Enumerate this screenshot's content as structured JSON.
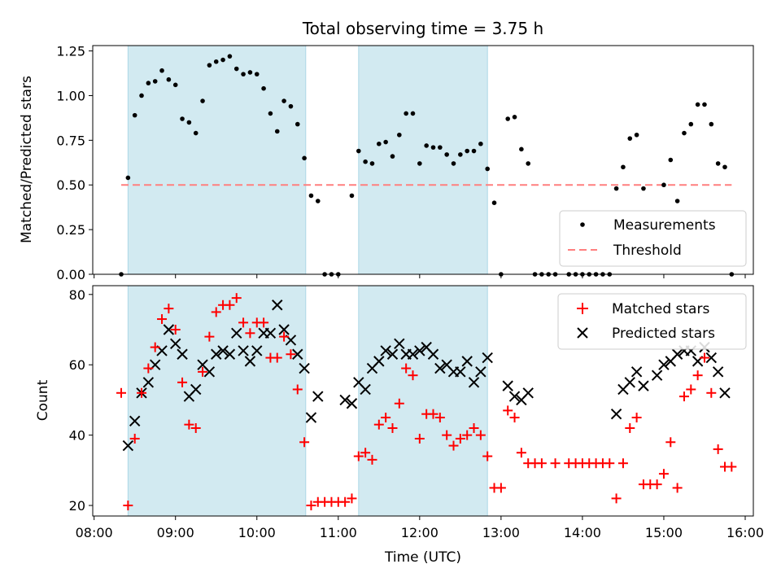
{
  "chart_data": {
    "title": "Total observing time = 3.75 h",
    "colors": {
      "band": "#add8e6",
      "measurement": "#000000",
      "threshold": "#ff7f7f",
      "matched": "#ff0000",
      "predicted": "#000000"
    },
    "bands": [
      [
        "08:25",
        "10:36"
      ],
      [
        "11:15",
        "12:50"
      ]
    ],
    "x_ticks": [
      "08:00",
      "09:00",
      "10:00",
      "11:00",
      "12:00",
      "13:00",
      "14:00",
      "15:00",
      "16:00"
    ],
    "xlim": [
      "07:59",
      "16:06"
    ],
    "xlabel": "Time (UTC)",
    "top": {
      "type": "scatter",
      "ylabel": "Matched/Predicted stars",
      "ylim": [
        0,
        1.28
      ],
      "y_ticks": [
        "0.00",
        "0.25",
        "0.50",
        "0.75",
        "1.00",
        "1.25"
      ],
      "legend": [
        "Measurements",
        "Threshold"
      ],
      "legend_position": "lower-right",
      "threshold": {
        "value": 0.5,
        "x": [
          "08:20",
          "15:50"
        ]
      },
      "measurements": [
        [
          "08:20",
          0.0
        ],
        [
          "08:25",
          0.54
        ],
        [
          "08:30",
          0.89
        ],
        [
          "08:35",
          1.0
        ],
        [
          "08:40",
          1.07
        ],
        [
          "08:45",
          1.08
        ],
        [
          "08:50",
          1.14
        ],
        [
          "08:55",
          1.09
        ],
        [
          "09:00",
          1.06
        ],
        [
          "09:05",
          0.87
        ],
        [
          "09:10",
          0.85
        ],
        [
          "09:15",
          0.79
        ],
        [
          "09:20",
          0.97
        ],
        [
          "09:25",
          1.17
        ],
        [
          "09:30",
          1.19
        ],
        [
          "09:35",
          1.2
        ],
        [
          "09:40",
          1.22
        ],
        [
          "09:45",
          1.15
        ],
        [
          "09:50",
          1.12
        ],
        [
          "09:55",
          1.13
        ],
        [
          "10:00",
          1.12
        ],
        [
          "10:05",
          1.04
        ],
        [
          "10:10",
          0.9
        ],
        [
          "10:15",
          0.8
        ],
        [
          "10:20",
          0.97
        ],
        [
          "10:25",
          0.94
        ],
        [
          "10:30",
          0.84
        ],
        [
          "10:35",
          0.65
        ],
        [
          "10:40",
          0.44
        ],
        [
          "10:45",
          0.41
        ],
        [
          "10:50",
          0.0
        ],
        [
          "10:55",
          0.0
        ],
        [
          "11:00",
          0.0
        ],
        [
          "11:10",
          0.44
        ],
        [
          "11:15",
          0.69
        ],
        [
          "11:20",
          0.63
        ],
        [
          "11:25",
          0.62
        ],
        [
          "11:30",
          0.73
        ],
        [
          "11:35",
          0.74
        ],
        [
          "11:40",
          0.66
        ],
        [
          "11:45",
          0.78
        ],
        [
          "11:50",
          0.9
        ],
        [
          "11:55",
          0.9
        ],
        [
          "12:00",
          0.62
        ],
        [
          "12:05",
          0.72
        ],
        [
          "12:10",
          0.71
        ],
        [
          "12:15",
          0.71
        ],
        [
          "12:20",
          0.67
        ],
        [
          "12:25",
          0.62
        ],
        [
          "12:30",
          0.67
        ],
        [
          "12:35",
          0.69
        ],
        [
          "12:40",
          0.69
        ],
        [
          "12:45",
          0.73
        ],
        [
          "12:50",
          0.59
        ],
        [
          "12:55",
          0.4
        ],
        [
          "13:00",
          0.0
        ],
        [
          "13:05",
          0.87
        ],
        [
          "13:10",
          0.88
        ],
        [
          "13:15",
          0.7
        ],
        [
          "13:20",
          0.62
        ],
        [
          "13:25",
          0.0
        ],
        [
          "13:30",
          0.0
        ],
        [
          "13:35",
          0.0
        ],
        [
          "13:40",
          0.0
        ],
        [
          "13:50",
          0.0
        ],
        [
          "13:55",
          0.0
        ],
        [
          "14:00",
          0.0
        ],
        [
          "14:05",
          0.0
        ],
        [
          "14:10",
          0.0
        ],
        [
          "14:15",
          0.0
        ],
        [
          "14:20",
          0.0
        ],
        [
          "14:25",
          0.48
        ],
        [
          "14:30",
          0.6
        ],
        [
          "14:35",
          0.76
        ],
        [
          "14:40",
          0.78
        ],
        [
          "14:45",
          0.48
        ],
        [
          "15:00",
          0.5
        ],
        [
          "15:05",
          0.64
        ],
        [
          "15:10",
          0.41
        ],
        [
          "15:15",
          0.79
        ],
        [
          "15:20",
          0.84
        ],
        [
          "15:25",
          0.95
        ],
        [
          "15:30",
          0.95
        ],
        [
          "15:35",
          0.84
        ],
        [
          "15:40",
          0.62
        ],
        [
          "15:45",
          0.6
        ],
        [
          "15:50",
          0.0
        ]
      ]
    },
    "bottom": {
      "type": "scatter",
      "ylabel": "Count",
      "ylim": [
        17,
        82.5
      ],
      "y_ticks": [
        "20",
        "40",
        "60",
        "80"
      ],
      "legend": [
        "Matched stars",
        "Predicted stars"
      ],
      "legend_position": "upper-right",
      "matched": [
        [
          "08:20",
          52
        ],
        [
          "08:25",
          20
        ],
        [
          "08:30",
          39
        ],
        [
          "08:35",
          52
        ],
        [
          "08:40",
          59
        ],
        [
          "08:45",
          65
        ],
        [
          "08:50",
          73
        ],
        [
          "08:55",
          76
        ],
        [
          "09:00",
          70
        ],
        [
          "09:05",
          55
        ],
        [
          "09:10",
          43
        ],
        [
          "09:15",
          42
        ],
        [
          "09:20",
          58
        ],
        [
          "09:25",
          68
        ],
        [
          "09:30",
          75
        ],
        [
          "09:35",
          77
        ],
        [
          "09:40",
          77
        ],
        [
          "09:45",
          79
        ],
        [
          "09:50",
          72
        ],
        [
          "09:55",
          69
        ],
        [
          "10:00",
          72
        ],
        [
          "10:05",
          72
        ],
        [
          "10:10",
          62
        ],
        [
          "10:15",
          62
        ],
        [
          "10:20",
          68
        ],
        [
          "10:25",
          63
        ],
        [
          "10:30",
          53
        ],
        [
          "10:35",
          38
        ],
        [
          "10:40",
          20
        ],
        [
          "10:45",
          21
        ],
        [
          "10:50",
          21
        ],
        [
          "10:55",
          21
        ],
        [
          "11:00",
          21
        ],
        [
          "11:05",
          21
        ],
        [
          "11:10",
          22
        ],
        [
          "11:15",
          34
        ],
        [
          "11:20",
          35
        ],
        [
          "11:25",
          33
        ],
        [
          "11:30",
          43
        ],
        [
          "11:35",
          45
        ],
        [
          "11:40",
          42
        ],
        [
          "11:45",
          49
        ],
        [
          "11:50",
          59
        ],
        [
          "11:55",
          57
        ],
        [
          "12:00",
          39
        ],
        [
          "12:05",
          46
        ],
        [
          "12:10",
          46
        ],
        [
          "12:15",
          45
        ],
        [
          "12:20",
          40
        ],
        [
          "12:25",
          37
        ],
        [
          "12:30",
          39
        ],
        [
          "12:35",
          40
        ],
        [
          "12:40",
          42
        ],
        [
          "12:45",
          40
        ],
        [
          "12:50",
          34
        ],
        [
          "12:55",
          25
        ],
        [
          "13:00",
          25
        ],
        [
          "13:05",
          47
        ],
        [
          "13:10",
          45
        ],
        [
          "13:15",
          35
        ],
        [
          "13:20",
          32
        ],
        [
          "13:25",
          32
        ],
        [
          "13:30",
          32
        ],
        [
          "13:40",
          32
        ],
        [
          "13:50",
          32
        ],
        [
          "13:55",
          32
        ],
        [
          "14:00",
          32
        ],
        [
          "14:05",
          32
        ],
        [
          "14:10",
          32
        ],
        [
          "14:15",
          32
        ],
        [
          "14:20",
          32
        ],
        [
          "14:25",
          22
        ],
        [
          "14:30",
          32
        ],
        [
          "14:35",
          42
        ],
        [
          "14:40",
          45
        ],
        [
          "14:45",
          26
        ],
        [
          "14:50",
          26
        ],
        [
          "14:55",
          26
        ],
        [
          "15:00",
          29
        ],
        [
          "15:05",
          38
        ],
        [
          "15:10",
          25
        ],
        [
          "15:15",
          51
        ],
        [
          "15:20",
          53
        ],
        [
          "15:25",
          57
        ],
        [
          "15:30",
          62
        ],
        [
          "15:35",
          52
        ],
        [
          "15:40",
          36
        ],
        [
          "15:45",
          31
        ],
        [
          "15:50",
          31
        ]
      ],
      "predicted": [
        [
          "08:25",
          37
        ],
        [
          "08:30",
          44
        ],
        [
          "08:35",
          52
        ],
        [
          "08:40",
          55
        ],
        [
          "08:45",
          60
        ],
        [
          "08:50",
          64
        ],
        [
          "08:55",
          70
        ],
        [
          "09:00",
          66
        ],
        [
          "09:05",
          63
        ],
        [
          "09:10",
          51
        ],
        [
          "09:15",
          53
        ],
        [
          "09:20",
          60
        ],
        [
          "09:25",
          58
        ],
        [
          "09:30",
          63
        ],
        [
          "09:35",
          64
        ],
        [
          "09:40",
          63
        ],
        [
          "09:45",
          69
        ],
        [
          "09:50",
          64
        ],
        [
          "09:55",
          61
        ],
        [
          "10:00",
          64
        ],
        [
          "10:05",
          69
        ],
        [
          "10:10",
          69
        ],
        [
          "10:15",
          77
        ],
        [
          "10:20",
          70
        ],
        [
          "10:25",
          67
        ],
        [
          "10:30",
          63
        ],
        [
          "10:35",
          59
        ],
        [
          "10:40",
          45
        ],
        [
          "10:45",
          51
        ],
        [
          "11:05",
          50
        ],
        [
          "11:10",
          49
        ],
        [
          "11:15",
          55
        ],
        [
          "11:20",
          53
        ],
        [
          "11:25",
          59
        ],
        [
          "11:30",
          61
        ],
        [
          "11:35",
          64
        ],
        [
          "11:40",
          63
        ],
        [
          "11:45",
          66
        ],
        [
          "11:50",
          63
        ],
        [
          "11:55",
          63
        ],
        [
          "12:00",
          64
        ],
        [
          "12:05",
          65
        ],
        [
          "12:10",
          63
        ],
        [
          "12:15",
          59
        ],
        [
          "12:20",
          60
        ],
        [
          "12:25",
          58
        ],
        [
          "12:30",
          58
        ],
        [
          "12:35",
          61
        ],
        [
          "12:40",
          55
        ],
        [
          "12:45",
          58
        ],
        [
          "12:50",
          62
        ],
        [
          "13:05",
          54
        ],
        [
          "13:10",
          51
        ],
        [
          "13:15",
          50
        ],
        [
          "13:20",
          52
        ],
        [
          "14:25",
          46
        ],
        [
          "14:30",
          53
        ],
        [
          "14:35",
          55
        ],
        [
          "14:40",
          58
        ],
        [
          "14:45",
          54
        ],
        [
          "14:55",
          57
        ],
        [
          "15:00",
          60
        ],
        [
          "15:05",
          61
        ],
        [
          "15:10",
          63
        ],
        [
          "15:15",
          64
        ],
        [
          "15:20",
          64
        ],
        [
          "15:25",
          61
        ],
        [
          "15:30",
          65
        ],
        [
          "15:35",
          62
        ],
        [
          "15:40",
          58
        ],
        [
          "15:45",
          52
        ]
      ]
    }
  }
}
